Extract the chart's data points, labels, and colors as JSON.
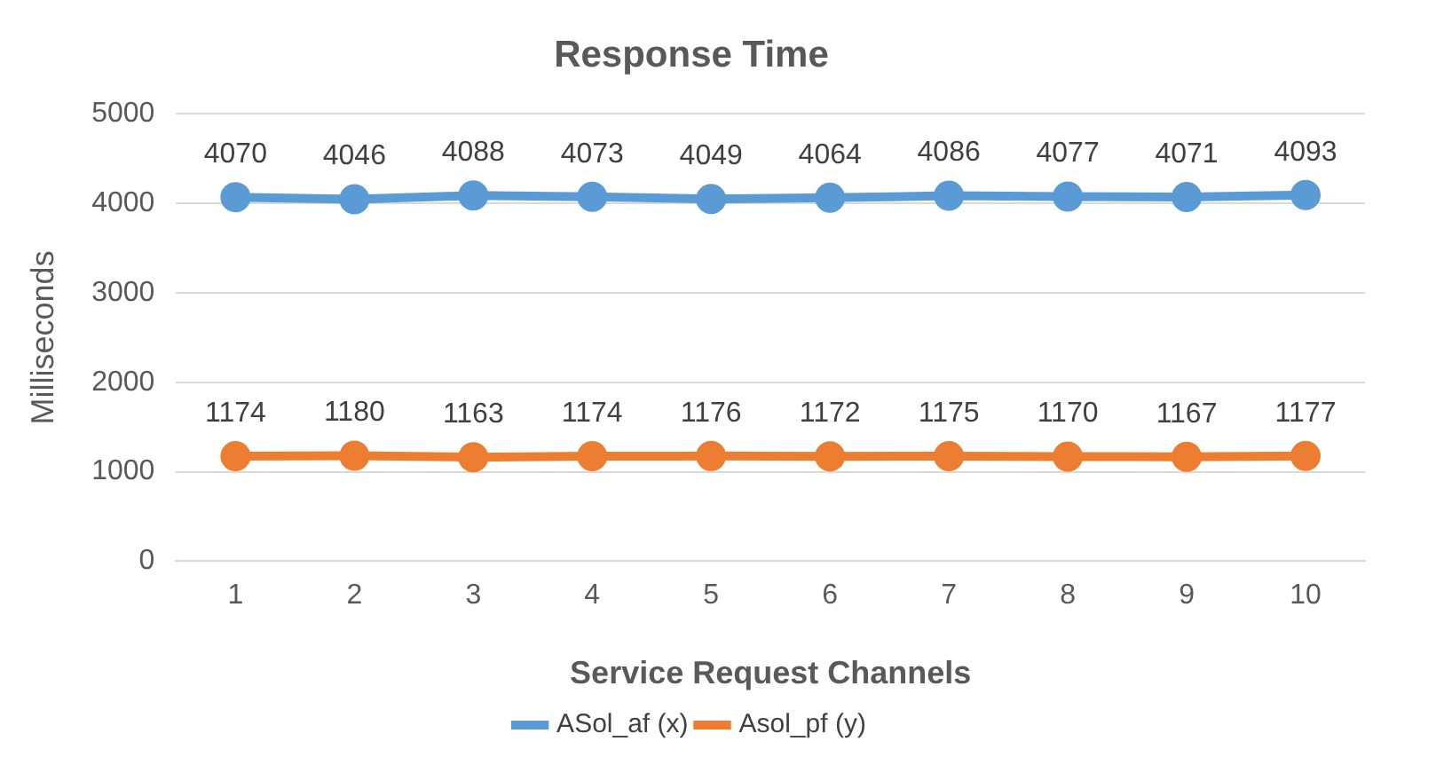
{
  "chart_data": {
    "type": "line",
    "title": "Response Time",
    "xlabel": "Service Request Channels",
    "ylabel": "Milliseconds",
    "categories": [
      "1",
      "2",
      "3",
      "4",
      "5",
      "6",
      "7",
      "8",
      "9",
      "10"
    ],
    "series": [
      {
        "name": "ASol_af (x)",
        "color": "#5b9bd5",
        "values": [
          4070,
          4046,
          4088,
          4073,
          4049,
          4064,
          4086,
          4077,
          4071,
          4093
        ]
      },
      {
        "name": "Asol_pf (y)",
        "color": "#ed7d31",
        "values": [
          1174,
          1180,
          1163,
          1174,
          1176,
          1172,
          1175,
          1170,
          1167,
          1177
        ]
      }
    ],
    "ylim": [
      0,
      5000
    ],
    "yticks": [
      0,
      1000,
      2000,
      3000,
      4000,
      5000
    ],
    "grid": "y",
    "legend": "bottom",
    "marker": "circle",
    "line_style": "solid",
    "data_labels": true
  }
}
